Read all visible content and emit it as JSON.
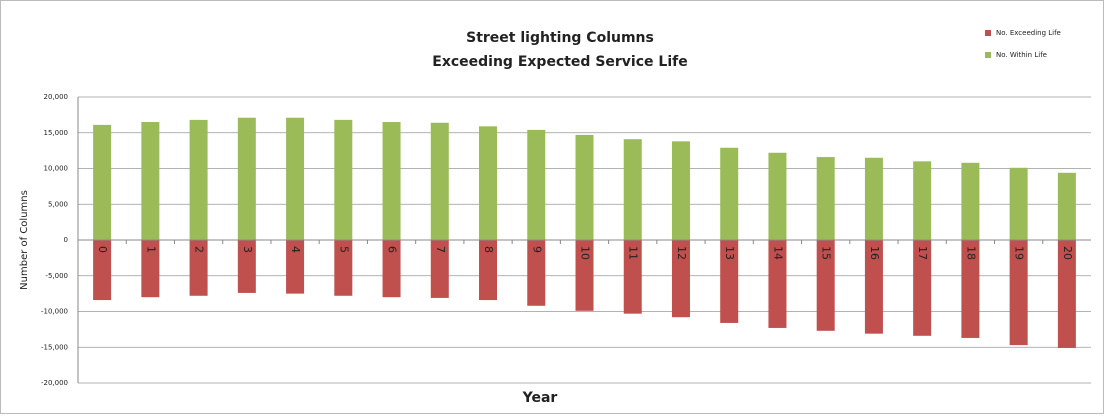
{
  "chart_data": {
    "type": "bar",
    "title": "Street lighting Columns",
    "subtitle": "Exceeding Expected Service Life",
    "x_label": "Year",
    "y_label": "Number of Columns",
    "categories": [
      "0",
      "1",
      "2",
      "3",
      "4",
      "5",
      "6",
      "7",
      "8",
      "9",
      "10",
      "11",
      "12",
      "13",
      "14",
      "15",
      "16",
      "17",
      "18",
      "19",
      "20"
    ],
    "series": [
      {
        "name": "No. Exceeding Life",
        "color": "#c0504d",
        "values": [
          -8400,
          -8000,
          -7800,
          -7400,
          -7500,
          -7800,
          -8000,
          -8100,
          -8400,
          -9200,
          -9900,
          -10300,
          -10800,
          -11600,
          -12300,
          -12700,
          -13100,
          -13400,
          -13700,
          -14700,
          -15100
        ]
      },
      {
        "name": "No. Within Life",
        "color": "#9bbb59",
        "values": [
          16100,
          16500,
          16800,
          17100,
          17100,
          16800,
          16500,
          16400,
          15900,
          15400,
          14700,
          14100,
          13800,
          12900,
          12200,
          11600,
          11500,
          11000,
          10800,
          10100,
          9400
        ]
      }
    ],
    "ylim": [
      -20000,
      20000
    ],
    "yticks": [
      {
        "value": -20000,
        "label": "-20,000"
      },
      {
        "value": -15000,
        "label": "-15,000"
      },
      {
        "value": -10000,
        "label": "-10,000"
      },
      {
        "value": -5000,
        "label": "-5,000"
      },
      0,
      {
        "value": 5000,
        "label": "5,000"
      },
      {
        "value": 10000,
        "label": "10,000"
      },
      {
        "value": 15000,
        "label": "15,000"
      },
      {
        "value": 20000,
        "label": "20,000"
      }
    ],
    "grid": true,
    "legend": "top-right"
  }
}
